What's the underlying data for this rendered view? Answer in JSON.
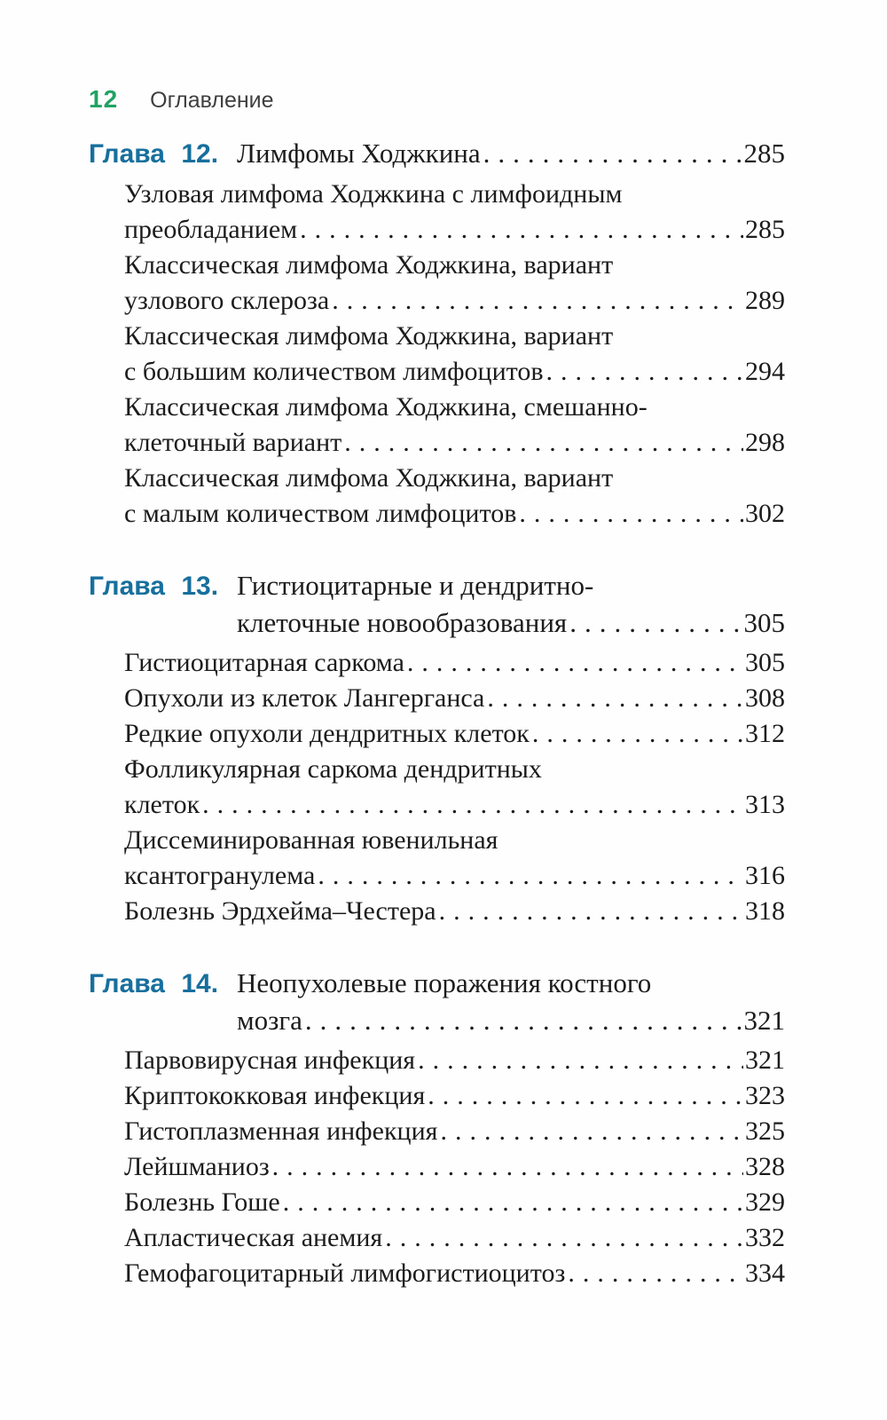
{
  "header": {
    "page_number": "12",
    "title": "Оглавление"
  },
  "colors": {
    "accent_green": "#21a263",
    "accent_blue": "#176f9d",
    "body_text": "#1c1c1c",
    "header_text": "#3f3f3f",
    "background": "#fefefe"
  },
  "toc": {
    "chapters": [
      {
        "label": "Глава 12.",
        "title_lines": [
          "Лимфомы Ходжкина"
        ],
        "page": "285",
        "entries": [
          {
            "lines": [
              "Узловая лимфома Ходжкина с лимфоидным",
              "преобладанием"
            ],
            "page": "285"
          },
          {
            "lines": [
              "Классическая лимфома Ходжкина, вариант",
              "узлового склероза"
            ],
            "page": "289"
          },
          {
            "lines": [
              "Классическая лимфома Ходжкина, вариант",
              "с большим количеством лимфоцитов"
            ],
            "page": "294"
          },
          {
            "lines": [
              "Классическая лимфома Ходжкина, смешанно-",
              "клеточный вариант"
            ],
            "page": "298"
          },
          {
            "lines": [
              "Классическая лимфома Ходжкина, вариант",
              "с малым количеством лимфоцитов"
            ],
            "page": "302"
          }
        ]
      },
      {
        "label": "Глава 13.",
        "title_lines": [
          "Гистиоцитарные и дендритно-",
          "клеточные новообразования"
        ],
        "page": "305",
        "entries": [
          {
            "lines": [
              "Гистиоцитарная саркома"
            ],
            "page": "305"
          },
          {
            "lines": [
              "Опухоли из клеток Лангерганса"
            ],
            "page": "308"
          },
          {
            "lines": [
              "Редкие опухоли дендритных клеток"
            ],
            "page": "312"
          },
          {
            "lines": [
              "Фолликулярная саркома дендритных",
              "клеток"
            ],
            "page": "313"
          },
          {
            "lines": [
              "Диссеминированная ювенильная",
              "ксантогранулема"
            ],
            "page": "316"
          },
          {
            "lines": [
              "Болезнь Эрдхейма–Честера"
            ],
            "page": "318"
          }
        ]
      },
      {
        "label": "Глава 14.",
        "title_lines": [
          "Неопухолевые поражения костного",
          "мозга"
        ],
        "page": "321",
        "entries": [
          {
            "lines": [
              "Парвовирусная инфекция"
            ],
            "page": "321"
          },
          {
            "lines": [
              "Криптококковая инфекция"
            ],
            "page": "323"
          },
          {
            "lines": [
              "Гистоплазменная инфекция"
            ],
            "page": "325"
          },
          {
            "lines": [
              "Лейшманиоз"
            ],
            "page": "328"
          },
          {
            "lines": [
              "Болезнь Гоше"
            ],
            "page": "329"
          },
          {
            "lines": [
              "Апластическая анемия"
            ],
            "page": "332"
          },
          {
            "lines": [
              "Гемофагоцитарный лимфогистиоцитоз"
            ],
            "page": "334"
          }
        ]
      }
    ]
  }
}
